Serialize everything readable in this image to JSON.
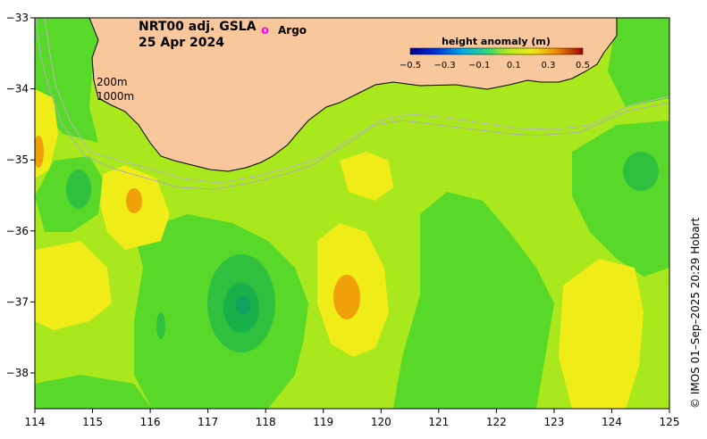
{
  "title": {
    "line1": "NRT00 adj. GSLA",
    "line2": "25 Apr 2024"
  },
  "legend": {
    "argo_marker": "o",
    "argo_label": "Argo",
    "colorbar_title": "height anomaly (m)",
    "colorbar_ticks": [
      "−0.5",
      "−0.3",
      "−0.1",
      "0.1",
      "0.3",
      "0.5"
    ]
  },
  "contour_labels": {
    "c200": "200m",
    "c1000": "1000m"
  },
  "credit": "© IMOS 01–Sep–2025 20:29 Hobart",
  "axes": {
    "x_ticks": [
      "114",
      "115",
      "116",
      "117",
      "118",
      "119",
      "120",
      "121",
      "122",
      "123",
      "124",
      "125"
    ],
    "y_ticks": [
      "−33",
      "−34",
      "−35",
      "−36",
      "−37",
      "−38"
    ]
  },
  "colors": {
    "land": "#f8c89c",
    "ocean_base": "#a8e81c",
    "yellow": "#f0ec18",
    "orange": "#f0a008",
    "green": "#58d828",
    "deep_green": "#18b048",
    "argo": "#ff00ff"
  }
}
